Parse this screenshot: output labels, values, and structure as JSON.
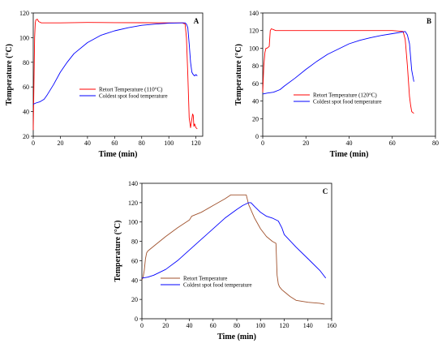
{
  "chart_data": [
    {
      "type": "line",
      "panel_label": "A",
      "xlabel": "Time (min)",
      "ylabel": "Temperature (°C)",
      "xlim": [
        0,
        125
      ],
      "ylim": [
        20,
        120
      ],
      "xticks": [
        0,
        20,
        40,
        60,
        80,
        100,
        120
      ],
      "yticks": [
        20,
        40,
        60,
        80,
        100,
        120
      ],
      "legend_position": "center-right",
      "series": [
        {
          "name": "Retort Temperature (110°C)",
          "color": "#ff0000",
          "x": [
            0,
            0.5,
            1,
            1.5,
            2,
            3,
            4,
            6,
            10,
            20,
            40,
            60,
            80,
            100,
            110,
            112,
            113,
            114,
            115,
            116,
            117,
            117.5,
            118,
            118.5,
            119,
            120,
            121
          ],
          "y": [
            25,
            60,
            100,
            112,
            114.5,
            115,
            113,
            112,
            112,
            112,
            112.3,
            112.2,
            112.1,
            112,
            112,
            111,
            100,
            70,
            35,
            27,
            34,
            38,
            37,
            28,
            30,
            27,
            26
          ]
        },
        {
          "name": "Coldest spot food temperature",
          "color": "#0000ff",
          "x": [
            0,
            2,
            5,
            8,
            10,
            15,
            20,
            25,
            30,
            40,
            50,
            60,
            70,
            80,
            90,
            100,
            110,
            112,
            113,
            114,
            115,
            116,
            117,
            118,
            119,
            120,
            121
          ],
          "y": [
            46,
            47,
            48,
            50,
            53,
            62,
            72,
            80,
            87,
            96,
            102,
            105.5,
            108,
            110,
            111,
            111.7,
            112,
            112,
            111,
            108,
            95,
            80,
            72,
            70,
            69,
            70,
            69
          ]
        }
      ]
    },
    {
      "type": "line",
      "panel_label": "B",
      "xlabel": "Time (min)",
      "ylabel": "Temperature (°C)",
      "xlim": [
        0,
        80
      ],
      "ylim": [
        0,
        140
      ],
      "xticks": [
        0,
        20,
        40,
        60,
        80
      ],
      "yticks": [
        0,
        20,
        40,
        60,
        80,
        100,
        120,
        140
      ],
      "legend_position": "center-right",
      "series": [
        {
          "name": "Retort Temperature (120°C)",
          "color": "#ff0000",
          "x": [
            0,
            0.5,
            1,
            1.5,
            2,
            3,
            3.5,
            4,
            5,
            6,
            10,
            20,
            40,
            60,
            65,
            66,
            67,
            68,
            68.5,
            69,
            70
          ],
          "y": [
            50,
            80,
            95,
            100,
            100,
            102,
            120,
            122,
            121,
            120,
            120,
            120,
            120,
            120,
            119,
            110,
            80,
            45,
            35,
            28,
            26
          ]
        },
        {
          "name": "Coldest spot food temperature",
          "color": "#0000ff",
          "x": [
            0,
            2,
            5,
            8,
            10,
            15,
            20,
            25,
            30,
            35,
            40,
            45,
            50,
            55,
            60,
            65,
            66,
            67,
            68,
            69,
            70
          ],
          "y": [
            48,
            49,
            50,
            53,
            57,
            66,
            76,
            85,
            93,
            99,
            105,
            109,
            112,
            114.5,
            116.5,
            118.5,
            119,
            115,
            105,
            75,
            62
          ]
        }
      ]
    },
    {
      "type": "line",
      "panel_label": "C",
      "xlabel": "Time (min)",
      "ylabel": "Temperature (°C)",
      "xlim": [
        0,
        160
      ],
      "ylim": [
        0,
        140
      ],
      "xticks": [
        0,
        20,
        40,
        60,
        80,
        100,
        120,
        140,
        160
      ],
      "yticks": [
        0,
        20,
        40,
        60,
        80,
        100,
        120,
        140
      ],
      "legend_position": "bottom-center",
      "series": [
        {
          "name": "Retort Temperature",
          "color": "#a0522d",
          "x": [
            0,
            1,
            2,
            3,
            4,
            5,
            7,
            10,
            20,
            30,
            40,
            42,
            50,
            60,
            70,
            75,
            80,
            85,
            88,
            90,
            95,
            100,
            105,
            110,
            113,
            114,
            115,
            116,
            118,
            120,
            125,
            130,
            140,
            150,
            154
          ],
          "y": [
            40,
            43,
            50,
            62,
            68,
            70,
            72,
            75,
            85,
            94,
            102,
            106,
            110,
            117,
            124,
            128,
            128,
            128,
            128,
            118,
            104,
            93,
            85,
            80,
            78,
            45,
            36,
            33,
            30,
            28,
            23,
            19,
            17,
            16,
            15
          ]
        },
        {
          "name": "Coldest spot food temperature",
          "color": "#0000ff",
          "x": [
            0,
            5,
            10,
            20,
            30,
            40,
            50,
            60,
            70,
            80,
            85,
            90,
            92,
            95,
            100,
            105,
            110,
            115,
            118,
            120,
            130,
            140,
            150,
            155
          ],
          "y": [
            42,
            43,
            45,
            51,
            60,
            71,
            82,
            93,
            104,
            113,
            117,
            120,
            120,
            116,
            110,
            106,
            104,
            101,
            94,
            87,
            74,
            62,
            50,
            42
          ]
        }
      ]
    }
  ]
}
